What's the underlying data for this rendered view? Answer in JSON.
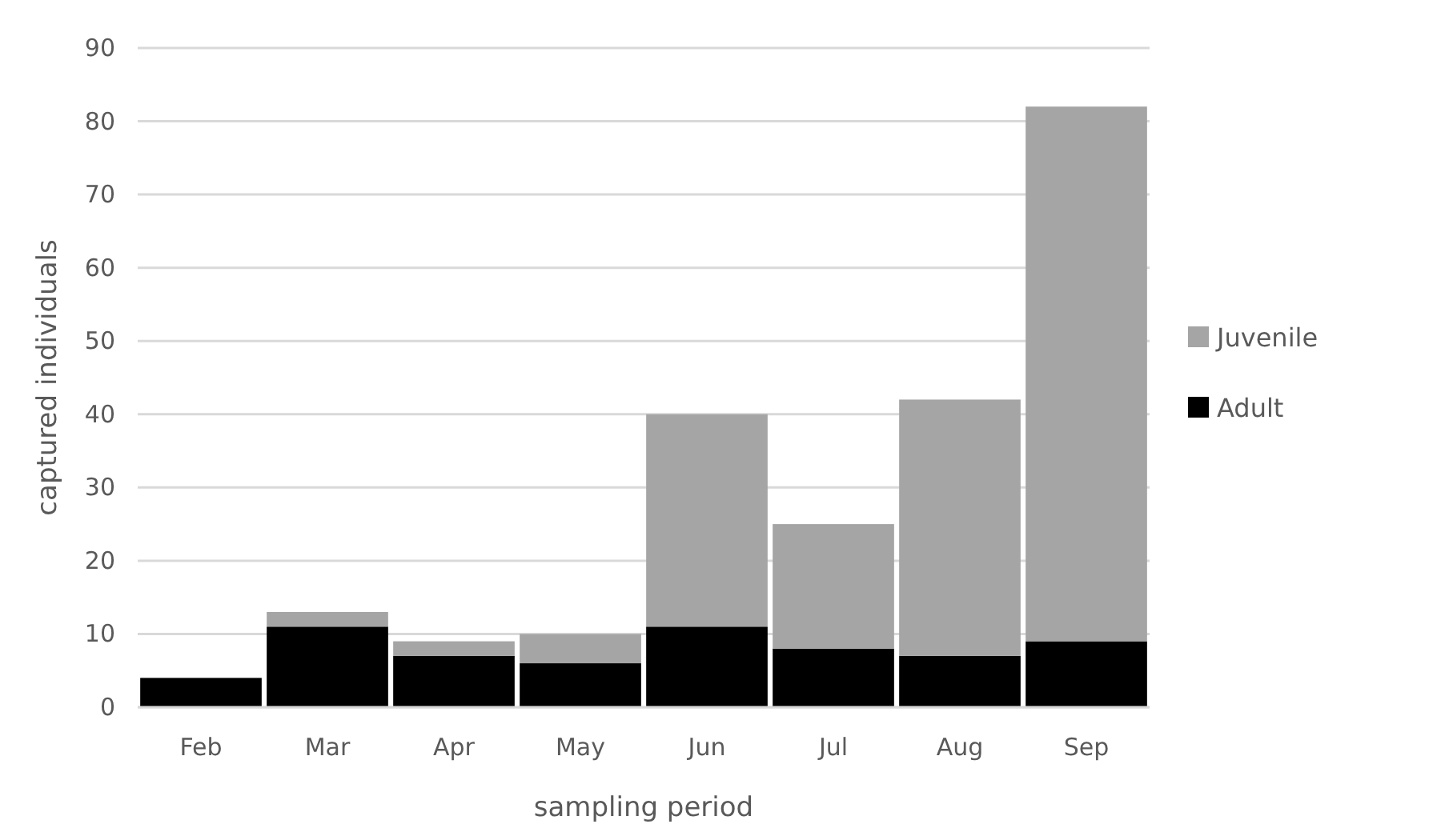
{
  "chart_data": {
    "type": "bar",
    "stacked": true,
    "xlabel": "sampling period",
    "ylabel": "captured individuals",
    "categories": [
      "Feb",
      "Mar",
      "Apr",
      "May",
      "Jun",
      "Jul",
      "Aug",
      "Sep"
    ],
    "series": [
      {
        "name": "Adult",
        "color": "#000000",
        "values": [
          4,
          11,
          7,
          6,
          11,
          8,
          7,
          9
        ]
      },
      {
        "name": "Juvenile",
        "color": "#a5a5a5",
        "values": [
          0,
          2,
          2,
          4,
          29,
          17,
          35,
          73
        ]
      }
    ],
    "ylim": [
      0,
      90
    ],
    "yticks": [
      0,
      10,
      20,
      30,
      40,
      50,
      60,
      70,
      80,
      90
    ],
    "grid": "y",
    "legend": "right"
  }
}
